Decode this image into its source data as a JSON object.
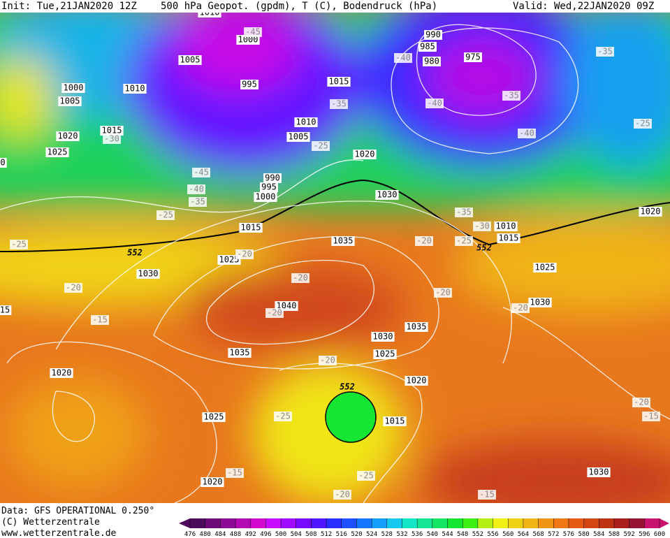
{
  "header": {
    "init": "Init: Tue,21JAN2020 12Z",
    "title": "500 hPa Geopot. (gpdm), T (C), Bodendruck (hPa)",
    "valid": "Valid: Wed,22JAN2020 09Z"
  },
  "footer": {
    "source": "Data: GFS OPERATIONAL 0.250°",
    "copyright": "(C) Wetterzentrale",
    "url": "www.wetterzentrale.de"
  },
  "map_labels": {
    "isobars": [
      1010,
      1000,
      1005,
      995,
      1010,
      1000,
      1005,
      1015,
      990,
      985,
      980,
      975,
      1010,
      1005,
      1015,
      1020,
      1025,
      1020,
      990,
      995,
      1000,
      1030,
      1015,
      1010,
      1015,
      1020,
      1035,
      1025,
      1030,
      1025,
      1040,
      1030,
      1035,
      1030,
      1035,
      1025,
      1020,
      1020,
      1025,
      1015,
      1020,
      1030,
      15,
      0
    ],
    "isotherms": [
      -45,
      -40,
      -35,
      -35,
      -40,
      -35,
      -30,
      -25,
      -40,
      -25,
      -45,
      -40,
      -35,
      -25,
      -35,
      -30,
      -25,
      -20,
      -25,
      -20,
      -20,
      -20,
      -20,
      -20,
      -20,
      -15,
      -20,
      -25,
      -20,
      -15,
      -15,
      -25,
      -20,
      -15
    ],
    "contours": [
      552,
      552,
      552
    ]
  },
  "colorbar": {
    "ticks": [
      476,
      480,
      484,
      488,
      492,
      496,
      500,
      504,
      508,
      512,
      516,
      520,
      524,
      528,
      532,
      536,
      540,
      544,
      548,
      552,
      556,
      560,
      564,
      568,
      572,
      576,
      580,
      584,
      588,
      592,
      596,
      600
    ],
    "colors": [
      "#4b0a5a",
      "#6e0a78",
      "#8c0a96",
      "#b40ab4",
      "#d20ad2",
      "#c80aff",
      "#a00aff",
      "#780aff",
      "#5014ff",
      "#2830ff",
      "#1e50ff",
      "#1478ff",
      "#14a0ff",
      "#14c8f0",
      "#14e6c8",
      "#14e696",
      "#14e664",
      "#14e632",
      "#3cf014",
      "#b4f014",
      "#f0f014",
      "#f0d214",
      "#f0b414",
      "#f09614",
      "#f07814",
      "#e65a14",
      "#d24614",
      "#be3214",
      "#aa1e1e",
      "#961432",
      "#c8146e"
    ]
  }
}
